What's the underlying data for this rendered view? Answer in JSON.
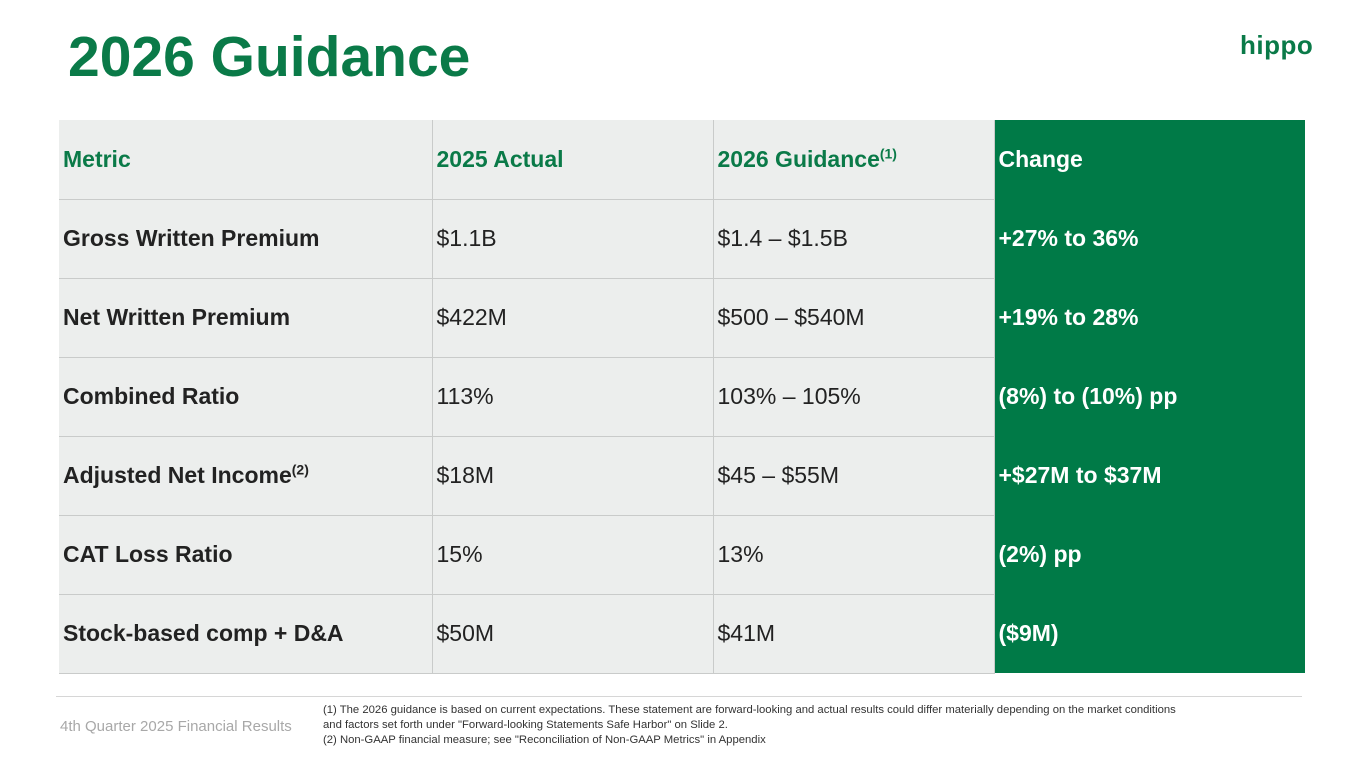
{
  "title": "2026 Guidance",
  "logo": "hippo",
  "table": {
    "headers": {
      "metric": "Metric",
      "actual": "2025 Actual",
      "guidance": "2026 Guidance",
      "guidance_sup": "(1)",
      "change": "Change"
    },
    "rows": [
      {
        "metric": "Gross Written Premium",
        "sup": "",
        "actual": "$1.1B",
        "guidance": "$1.4 – $1.5B",
        "change": "+27% to 36%"
      },
      {
        "metric": "Net Written Premium",
        "sup": "",
        "actual": "$422M",
        "guidance": "$500 – $540M",
        "change": "+19% to 28%"
      },
      {
        "metric": "Combined Ratio",
        "sup": "",
        "actual": "113%",
        "guidance": "103% – 105%",
        "change": "(8%) to (10%) pp"
      },
      {
        "metric": "Adjusted Net Income",
        "sup": "(2)",
        "actual": "$18M",
        "guidance": "$45 – $55M",
        "change": "+$27M to $37M"
      },
      {
        "metric": "CAT Loss Ratio",
        "sup": "",
        "actual": "15%",
        "guidance": "13%",
        "change": "(2%) pp"
      },
      {
        "metric": "Stock-based comp + D&A",
        "sup": "",
        "actual": "$50M",
        "guidance": "$41M",
        "change": "($9M)"
      }
    ]
  },
  "footer": {
    "left": "4th Quarter 2025 Financial Results",
    "note1_line1": "(1) The 2026 guidance is based on current expectations. These statement are forward-looking and actual results could differ materially depending on the market conditions",
    "note1_line2": "and factors set forth under \"Forward-looking Statements Safe Harbor\" on Slide 2.",
    "note2": "(2) Non-GAAP financial measure; see \"Reconciliation of Non-GAAP Metrics\" in Appendix"
  },
  "colors": {
    "brand_green": "#0a7a48",
    "change_column": "#007a47",
    "cell_bg": "#eceeed"
  }
}
